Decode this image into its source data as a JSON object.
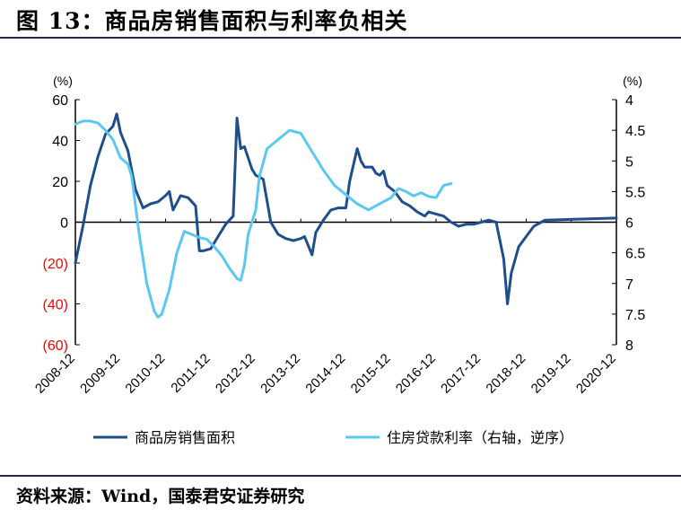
{
  "header": {
    "title": "图 13：商品房销售面积与利率负相关"
  },
  "footer": {
    "source": "资料来源：Wind，国泰君安证券研究"
  },
  "chart_data": {
    "type": "line",
    "left_axis": {
      "unit_label": "(%)",
      "range": [
        -60,
        60
      ],
      "ticks": [
        60,
        40,
        20,
        0,
        -20,
        -40,
        -60
      ],
      "tick_labels": [
        "60",
        "40",
        "20",
        "0",
        "(20)",
        "(40)",
        "(60)"
      ],
      "negative_label_color": "#ff0000"
    },
    "right_axis": {
      "unit_label": "(%)",
      "range": [
        4,
        8
      ],
      "reversed": true,
      "ticks": [
        4,
        4.5,
        5,
        5.5,
        6,
        6.5,
        7,
        7.5,
        8
      ],
      "tick_labels": [
        "4",
        "4.5",
        "5",
        "5.5",
        "6",
        "6.5",
        "7",
        "7.5",
        "8"
      ]
    },
    "x_range": [
      "2008-12",
      "2020-12"
    ],
    "x_tick_labels": [
      "2008-12",
      "2009-12",
      "2010-12",
      "2011-12",
      "2012-12",
      "2013-12",
      "2014-12",
      "2015-12",
      "2016-12",
      "2017-12",
      "2018-12",
      "2019-12",
      "2020-12"
    ],
    "grid": false,
    "legend_position": "bottom",
    "series": [
      {
        "name": "商品房销售面积",
        "axis": "left",
        "color": "#1f4e8c",
        "points": [
          [
            "2008-12",
            -20
          ],
          [
            "2009-02",
            -2
          ],
          [
            "2009-04",
            18
          ],
          [
            "2009-06",
            32
          ],
          [
            "2009-08",
            43
          ],
          [
            "2009-10",
            47
          ],
          [
            "2009-11",
            53
          ],
          [
            "2009-12",
            44
          ],
          [
            "2010-02",
            35
          ],
          [
            "2010-04",
            16
          ],
          [
            "2010-06",
            7
          ],
          [
            "2010-08",
            9
          ],
          [
            "2010-10",
            10
          ],
          [
            "2010-12",
            13
          ],
          [
            "2011-01",
            15
          ],
          [
            "2011-02",
            6
          ],
          [
            "2011-04",
            13
          ],
          [
            "2011-06",
            12
          ],
          [
            "2011-08",
            8
          ],
          [
            "2011-09",
            -14
          ],
          [
            "2011-10",
            -14
          ],
          [
            "2011-12",
            -13
          ],
          [
            "2012-02",
            -7
          ],
          [
            "2012-04",
            -1
          ],
          [
            "2012-06",
            3
          ],
          [
            "2012-07",
            51
          ],
          [
            "2012-08",
            36
          ],
          [
            "2012-09",
            37
          ],
          [
            "2012-11",
            26
          ],
          [
            "2012-12",
            23
          ],
          [
            "2013-02",
            21
          ],
          [
            "2013-04",
            0
          ],
          [
            "2013-06",
            -6
          ],
          [
            "2013-08",
            -8
          ],
          [
            "2013-10",
            -9
          ],
          [
            "2013-12",
            -8
          ],
          [
            "2014-01",
            -7
          ],
          [
            "2014-03",
            -16
          ],
          [
            "2014-04",
            -5
          ],
          [
            "2014-06",
            1
          ],
          [
            "2014-08",
            6
          ],
          [
            "2014-10",
            7
          ],
          [
            "2014-12",
            7
          ],
          [
            "2015-01",
            20
          ],
          [
            "2015-03",
            36
          ],
          [
            "2015-04",
            30
          ],
          [
            "2015-05",
            27
          ],
          [
            "2015-07",
            27
          ],
          [
            "2015-08",
            24
          ],
          [
            "2015-09",
            23
          ],
          [
            "2015-10",
            25
          ],
          [
            "2015-11",
            18
          ],
          [
            "2016-01",
            15
          ],
          [
            "2016-03",
            10
          ],
          [
            "2016-05",
            8
          ],
          [
            "2016-07",
            5
          ],
          [
            "2016-09",
            3
          ],
          [
            "2016-10",
            5
          ],
          [
            "2016-12",
            4
          ],
          [
            "2017-02",
            3
          ],
          [
            "2017-04",
            0
          ],
          [
            "2017-06",
            -2
          ],
          [
            "2017-08",
            -1
          ],
          [
            "2017-10",
            -1
          ],
          [
            "2017-12",
            0
          ],
          [
            "2018-02",
            1
          ],
          [
            "2018-04",
            0
          ],
          [
            "2018-06",
            -18
          ],
          [
            "2018-07",
            -40
          ],
          [
            "2018-08",
            -25
          ],
          [
            "2018-10",
            -12
          ],
          [
            "2018-12",
            -7
          ],
          [
            "2019-02",
            -2
          ],
          [
            "2019-04",
            0
          ],
          [
            "2019-05",
            1
          ],
          [
            "2020-12",
            2
          ]
        ]
      },
      {
        "name": "住房贷款利率（右轴，逆序）",
        "axis": "right",
        "color": "#5bc8f0",
        "points": [
          [
            "2008-12",
            4.4
          ],
          [
            "2009-02",
            4.35
          ],
          [
            "2009-04",
            4.35
          ],
          [
            "2009-06",
            4.38
          ],
          [
            "2009-08",
            4.5
          ],
          [
            "2009-10",
            4.65
          ],
          [
            "2009-12",
            4.95
          ],
          [
            "2010-02",
            5.05
          ],
          [
            "2010-03",
            5.25
          ],
          [
            "2010-05",
            6.2
          ],
          [
            "2010-07",
            7.0
          ],
          [
            "2010-09",
            7.45
          ],
          [
            "2010-10",
            7.55
          ],
          [
            "2010-11",
            7.5
          ],
          [
            "2011-01",
            7.1
          ],
          [
            "2011-03",
            6.5
          ],
          [
            "2011-05",
            6.15
          ],
          [
            "2011-07",
            6.2
          ],
          [
            "2011-09",
            6.25
          ],
          [
            "2011-11",
            6.28
          ],
          [
            "2012-01",
            6.4
          ],
          [
            "2012-03",
            6.55
          ],
          [
            "2012-05",
            6.75
          ],
          [
            "2012-07",
            6.92
          ],
          [
            "2012-08",
            6.95
          ],
          [
            "2012-09",
            6.7
          ],
          [
            "2012-10",
            6.2
          ],
          [
            "2012-12",
            5.8
          ],
          [
            "2013-01",
            5.25
          ],
          [
            "2013-03",
            4.8
          ],
          [
            "2013-06",
            4.65
          ],
          [
            "2013-09",
            4.5
          ],
          [
            "2013-12",
            4.55
          ],
          [
            "2014-03",
            4.85
          ],
          [
            "2014-06",
            5.15
          ],
          [
            "2014-09",
            5.4
          ],
          [
            "2014-12",
            5.55
          ],
          [
            "2015-03",
            5.7
          ],
          [
            "2015-06",
            5.8
          ],
          [
            "2015-09",
            5.7
          ],
          [
            "2015-12",
            5.6
          ],
          [
            "2016-02",
            5.45
          ],
          [
            "2016-04",
            5.5
          ],
          [
            "2016-06",
            5.57
          ],
          [
            "2016-08",
            5.52
          ],
          [
            "2016-10",
            5.58
          ],
          [
            "2016-12",
            5.6
          ],
          [
            "2017-02",
            5.4
          ],
          [
            "2017-04",
            5.37
          ]
        ]
      }
    ]
  }
}
